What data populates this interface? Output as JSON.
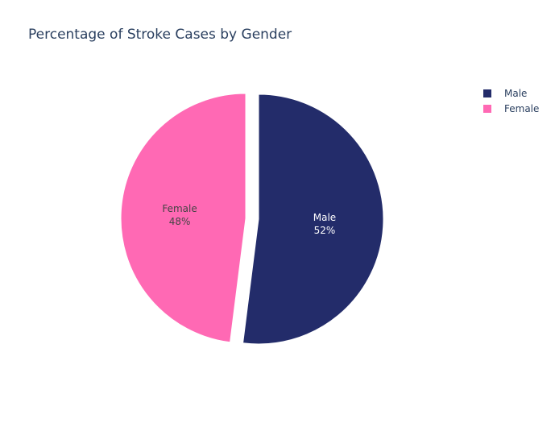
{
  "chart_data": {
    "type": "pie",
    "title": "Percentage of Stroke Cases by Gender",
    "slices": [
      {
        "label": "Male",
        "value": 52,
        "percent_label": "52%",
        "color": "#232C6A",
        "text_color": "#ffffff",
        "pulled": false
      },
      {
        "label": "Female",
        "value": 48,
        "percent_label": "48%",
        "color": "#FF69B4",
        "text_color": "#444444",
        "pulled": true
      }
    ],
    "legend": {
      "placement": "top-right",
      "entries": [
        "Male",
        "Female"
      ]
    }
  }
}
